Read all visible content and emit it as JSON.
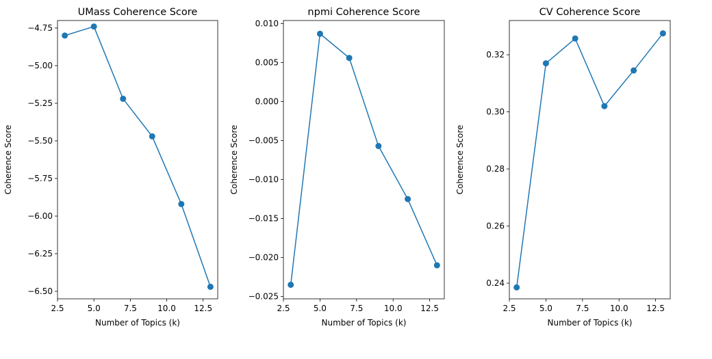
{
  "chart_data": [
    {
      "type": "line",
      "title": "UMass Coherence Score",
      "xlabel": "Number of Topics (k)",
      "ylabel": "Coherence Score",
      "xlim": [
        2.5,
        13.5
      ],
      "ylim": [
        -6.55,
        -4.7
      ],
      "xticks": [
        2.5,
        5.0,
        7.5,
        10.0,
        12.5
      ],
      "xtick_labels": [
        "2.5",
        "5.0",
        "7.5",
        "10.0",
        "12.5"
      ],
      "yticks": [
        -4.75,
        -5.0,
        -5.25,
        -5.5,
        -5.75,
        -6.0,
        -6.25,
        -6.5
      ],
      "ytick_labels": [
        "−4.75",
        "−5.00",
        "−5.25",
        "−5.50",
        "−5.75",
        "−6.00",
        "−6.25",
        "−6.50"
      ],
      "x": [
        3,
        5,
        7,
        9,
        11,
        13
      ],
      "values": [
        -4.8,
        -4.74,
        -5.22,
        -5.47,
        -5.92,
        -6.47
      ],
      "grid": false,
      "color": "#1f77b4"
    },
    {
      "type": "line",
      "title": "npmi Coherence Score",
      "xlabel": "Number of Topics (k)",
      "ylabel": "Coherence Score",
      "xlim": [
        2.5,
        13.5
      ],
      "ylim": [
        -0.0253,
        0.0104
      ],
      "xticks": [
        2.5,
        5.0,
        7.5,
        10.0,
        12.5
      ],
      "xtick_labels": [
        "2.5",
        "5.0",
        "7.5",
        "10.0",
        "12.5"
      ],
      "yticks": [
        0.01,
        0.005,
        0.0,
        -0.005,
        -0.01,
        -0.015,
        -0.02,
        -0.025
      ],
      "ytick_labels": [
        "0.010",
        "0.005",
        "0.000",
        "−0.005",
        "−0.010",
        "−0.015",
        "−0.020",
        "−0.025"
      ],
      "x": [
        3,
        5,
        7,
        9,
        11,
        13
      ],
      "values": [
        -0.0235,
        0.0087,
        0.0056,
        -0.0057,
        -0.0125,
        -0.021
      ],
      "grid": false,
      "color": "#1f77b4"
    },
    {
      "type": "line",
      "title": "CV Coherence Score",
      "xlabel": "Number of Topics (k)",
      "ylabel": "Coherence Score",
      "xlim": [
        2.5,
        13.5
      ],
      "ylim": [
        0.2345,
        0.332
      ],
      "xticks": [
        2.5,
        5.0,
        7.5,
        10.0,
        12.5
      ],
      "xtick_labels": [
        "2.5",
        "5.0",
        "7.5",
        "10.0",
        "12.5"
      ],
      "yticks": [
        0.32,
        0.3,
        0.28,
        0.26,
        0.24
      ],
      "ytick_labels": [
        "0.32",
        "0.30",
        "0.28",
        "0.26",
        "0.24"
      ],
      "x": [
        3,
        5,
        7,
        9,
        11,
        13
      ],
      "values": [
        0.2385,
        0.317,
        0.3257,
        0.302,
        0.3145,
        0.3275
      ],
      "grid": false,
      "color": "#1f77b4"
    }
  ]
}
